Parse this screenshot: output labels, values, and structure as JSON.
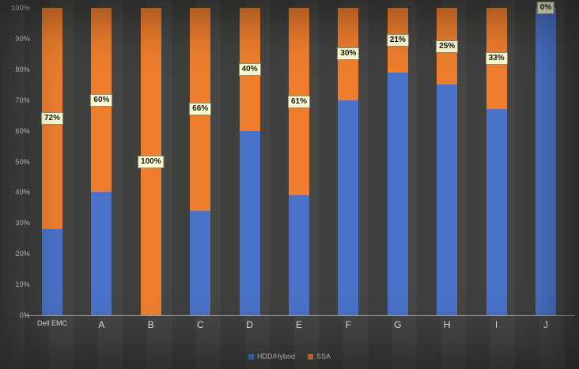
{
  "chart_data": {
    "type": "bar",
    "stacked": true,
    "stacked_100_percent": true,
    "categories": [
      "Dell EMC",
      "A",
      "B",
      "C",
      "D",
      "E",
      "F",
      "G",
      "H",
      "I",
      "J"
    ],
    "series": [
      {
        "name": "HDD/Hybrid",
        "color": "#4a72c8",
        "values": [
          28,
          40,
          0,
          34,
          60,
          39,
          70,
          79,
          75,
          67,
          100
        ]
      },
      {
        "name": "SSA",
        "color": "#ee7e2e",
        "values": [
          72,
          60,
          100,
          66,
          40,
          61,
          30,
          21,
          25,
          33,
          0
        ]
      }
    ],
    "data_labels": [
      "72%",
      "60%",
      "100%",
      "66%",
      "40%",
      "61%",
      "30%",
      "21%",
      "25%",
      "33%",
      "0%"
    ],
    "data_label_series": "SSA",
    "title": "",
    "xlabel": "",
    "ylabel": "",
    "ylim": [
      0,
      100
    ],
    "y_ticks": [
      "0%",
      "10%",
      "20%",
      "30%",
      "40%",
      "50%",
      "60%",
      "70%",
      "80%",
      "90%",
      "100%"
    ],
    "grid": false,
    "legend_position": "bottom",
    "legend": [
      {
        "label": "HDD/Hybrid",
        "color": "#4a72c8"
      },
      {
        "label": "SSA",
        "color": "#ee7e2e"
      }
    ]
  },
  "colors": {
    "background": "#424240",
    "axis_line": "#b5b5b5",
    "tick_text": "#d6d6d6",
    "category_text": "#e2e2e2",
    "data_label_bg": "#fbfbd7",
    "data_label_border": "#8f8f6e",
    "data_label_text": "#1c1c10",
    "hdd_blue": "#4a72c8",
    "ssa_orange": "#ee7e2e"
  }
}
